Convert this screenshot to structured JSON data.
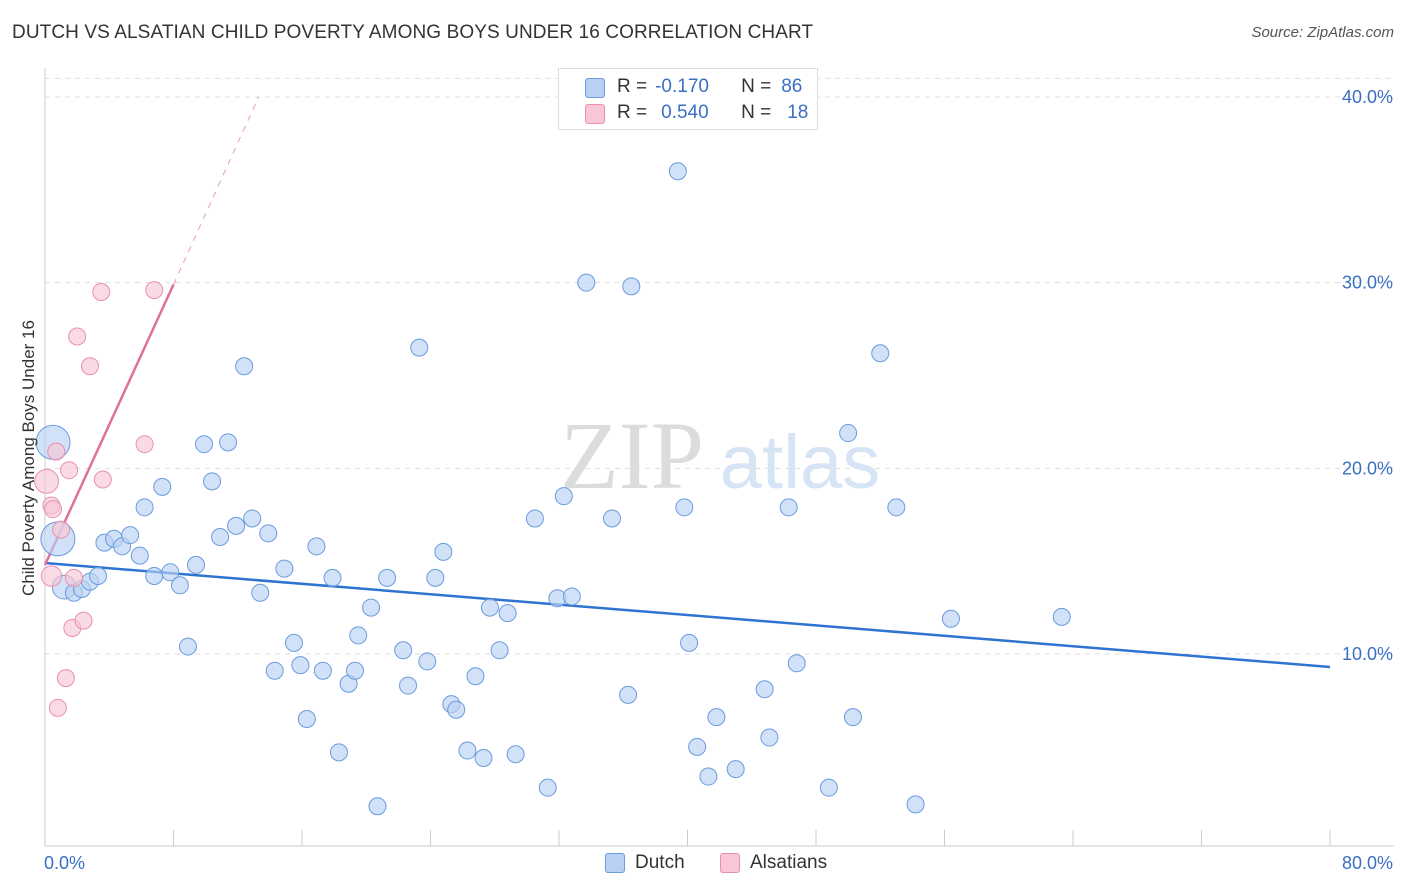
{
  "title": "DUTCH VS ALSATIAN CHILD POVERTY AMONG BOYS UNDER 16 CORRELATION CHART",
  "source": "Source: ZipAtlas.com",
  "watermark": {
    "zip": "ZIP",
    "atlas": "atlas"
  },
  "stats": [
    {
      "r_label": "R =",
      "r_value": "-0.170",
      "n_label": "N =",
      "n_value": "86",
      "color": "#b8d1f3",
      "border": "#6a9be0"
    },
    {
      "r_label": "R =",
      "r_value": "0.540",
      "n_label": "N =",
      "n_value": "18",
      "color": "#f8c6d6",
      "border": "#e990ae"
    }
  ],
  "legend": [
    {
      "label": "Dutch",
      "color": "#b8d1f3",
      "border": "#6a9be0"
    },
    {
      "label": "Alsatians",
      "color": "#f8c6d6",
      "border": "#e990ae"
    }
  ],
  "chart_data": {
    "type": "scatter",
    "title": "DUTCH VS ALSATIAN CHILD POVERTY AMONG BOYS UNDER 16 CORRELATION CHART",
    "xlabel": "",
    "ylabel": "Child Poverty Among Boys Under 16",
    "xlim": [
      0,
      80
    ],
    "ylim": [
      0,
      40
    ],
    "x_tick_labels": [
      "0.0%",
      "80.0%"
    ],
    "y_ticks": [
      10,
      20,
      30,
      40
    ],
    "y_tick_labels": [
      "10.0%",
      "20.0%",
      "30.0%",
      "40.0%"
    ],
    "grid": true,
    "legend_position": "bottom",
    "series": [
      {
        "name": "Dutch",
        "color": "#6a9be0",
        "fill": "#b8d1f3",
        "trend": {
          "x0": 0,
          "y0": 14.9,
          "x1": 80,
          "y1": 9.3,
          "color": "#2f74d0"
        },
        "points": [
          [
            0.5,
            21.4,
            2
          ],
          [
            0.8,
            16.2,
            2
          ],
          [
            1.2,
            13.6,
            1.4
          ],
          [
            1.8,
            13.3,
            1
          ],
          [
            2.3,
            13.5,
            1
          ],
          [
            2.8,
            13.9,
            1
          ],
          [
            3.3,
            14.2,
            1
          ],
          [
            3.7,
            16.0,
            1
          ],
          [
            4.3,
            16.2,
            1
          ],
          [
            4.8,
            15.8,
            1
          ],
          [
            5.3,
            16.4,
            1
          ],
          [
            5.9,
            15.3,
            1
          ],
          [
            6.2,
            17.9,
            1
          ],
          [
            6.8,
            14.2,
            1
          ],
          [
            7.3,
            19.0,
            1
          ],
          [
            7.8,
            14.4,
            1
          ],
          [
            8.4,
            13.7,
            1
          ],
          [
            8.9,
            10.4,
            1
          ],
          [
            9.4,
            14.8,
            1
          ],
          [
            9.9,
            21.3,
            1
          ],
          [
            10.4,
            19.3,
            1
          ],
          [
            10.9,
            16.3,
            1
          ],
          [
            11.4,
            21.4,
            1
          ],
          [
            11.9,
            16.9,
            1
          ],
          [
            12.4,
            25.5,
            1
          ],
          [
            12.9,
            17.3,
            1
          ],
          [
            13.4,
            13.3,
            1
          ],
          [
            13.9,
            16.5,
            1
          ],
          [
            14.3,
            9.1,
            1
          ],
          [
            14.9,
            14.6,
            1
          ],
          [
            15.5,
            10.6,
            1
          ],
          [
            15.9,
            9.4,
            1
          ],
          [
            16.3,
            6.5,
            1
          ],
          [
            16.9,
            15.8,
            1
          ],
          [
            17.3,
            9.1,
            1
          ],
          [
            17.9,
            14.1,
            1
          ],
          [
            18.3,
            4.7,
            1
          ],
          [
            18.9,
            8.4,
            1
          ],
          [
            19.3,
            9.1,
            1
          ],
          [
            19.5,
            11.0,
            1
          ],
          [
            20.3,
            12.5,
            1
          ],
          [
            20.7,
            1.8,
            1
          ],
          [
            21.3,
            14.1,
            1
          ],
          [
            22.3,
            10.2,
            1
          ],
          [
            22.6,
            8.3,
            1
          ],
          [
            23.3,
            26.5,
            1
          ],
          [
            23.8,
            9.6,
            1
          ],
          [
            24.3,
            14.1,
            1
          ],
          [
            24.8,
            15.5,
            1
          ],
          [
            25.3,
            7.3,
            1
          ],
          [
            25.6,
            7.0,
            1
          ],
          [
            26.3,
            4.8,
            1
          ],
          [
            26.8,
            8.8,
            1
          ],
          [
            27.3,
            4.4,
            1
          ],
          [
            27.7,
            12.5,
            1
          ],
          [
            28.3,
            10.2,
            1
          ],
          [
            28.8,
            12.2,
            1
          ],
          [
            29.3,
            4.6,
            1
          ],
          [
            30.5,
            17.3,
            1
          ],
          [
            31.3,
            2.8,
            1
          ],
          [
            31.9,
            13.0,
            1
          ],
          [
            32.3,
            18.5,
            1
          ],
          [
            32.8,
            13.1,
            1
          ],
          [
            33.7,
            30.0,
            1
          ],
          [
            35.3,
            17.3,
            1
          ],
          [
            36.3,
            7.8,
            1
          ],
          [
            36.5,
            29.8,
            1
          ],
          [
            39.4,
            36.0,
            1
          ],
          [
            39.8,
            17.9,
            1
          ],
          [
            40.1,
            10.6,
            1
          ],
          [
            40.6,
            5.0,
            1
          ],
          [
            41.3,
            3.4,
            1
          ],
          [
            41.8,
            6.6,
            1
          ],
          [
            43.0,
            3.8,
            1
          ],
          [
            44.8,
            8.1,
            1
          ],
          [
            45.1,
            5.5,
            1
          ],
          [
            46.3,
            17.9,
            1
          ],
          [
            46.8,
            9.5,
            1
          ],
          [
            48.8,
            2.8,
            1
          ],
          [
            50.0,
            21.9,
            1
          ],
          [
            50.3,
            6.6,
            1
          ],
          [
            52.0,
            26.2,
            1
          ],
          [
            53.0,
            17.9,
            1
          ],
          [
            54.2,
            1.9,
            1
          ],
          [
            56.4,
            11.9,
            1
          ],
          [
            63.3,
            12.0,
            1
          ]
        ]
      },
      {
        "name": "Alsatians",
        "color": "#e990ae",
        "fill": "#f8c6d6",
        "trend": {
          "x0": 0,
          "y0": 14.8,
          "x1": 8,
          "y1": 29.9,
          "color": "#e0709a",
          "dash_to": {
            "x": 13.3,
            "y": 40
          }
        },
        "points": [
          [
            0.1,
            19.3,
            1.4
          ],
          [
            0.4,
            18.0,
            1
          ],
          [
            0.4,
            14.2,
            1.2
          ],
          [
            0.5,
            17.8,
            1
          ],
          [
            0.7,
            20.9,
            1
          ],
          [
            0.8,
            7.1,
            1
          ],
          [
            1.0,
            16.7,
            1
          ],
          [
            1.3,
            8.7,
            1
          ],
          [
            1.5,
            19.9,
            1
          ],
          [
            1.7,
            11.4,
            1
          ],
          [
            1.8,
            14.1,
            1
          ],
          [
            2.0,
            27.1,
            1
          ],
          [
            2.4,
            11.8,
            1
          ],
          [
            2.8,
            25.5,
            1
          ],
          [
            3.5,
            29.5,
            1
          ],
          [
            3.6,
            19.4,
            1
          ],
          [
            6.2,
            21.3,
            1
          ],
          [
            6.8,
            29.6,
            1
          ]
        ]
      }
    ]
  }
}
